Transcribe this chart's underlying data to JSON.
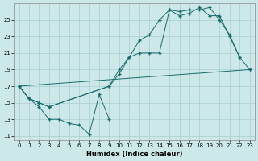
{
  "xlabel": "Humidex (Indice chaleur)",
  "bg_color": "#cce8e8",
  "line_color": "#1a6b6b",
  "grid_color": "#aacece",
  "xlim": [
    -0.5,
    23.5
  ],
  "ylim": [
    10.5,
    27.0
  ],
  "xticks": [
    0,
    1,
    2,
    3,
    4,
    5,
    6,
    7,
    8,
    9,
    10,
    11,
    12,
    13,
    14,
    15,
    16,
    17,
    18,
    19,
    20,
    21,
    22,
    23
  ],
  "yticks": [
    11,
    13,
    15,
    17,
    19,
    21,
    23,
    25
  ],
  "series": [
    {
      "x": [
        0,
        1,
        2,
        3,
        4,
        5,
        6,
        7,
        8,
        9
      ],
      "y": [
        17.0,
        15.5,
        14.5,
        13.0,
        13.0,
        12.5,
        12.3,
        11.2,
        16.0,
        13.0
      ]
    },
    {
      "x": [
        0,
        1,
        2,
        3,
        9,
        10,
        11,
        12,
        13,
        14,
        15,
        16,
        17,
        18,
        19,
        20,
        21,
        22
      ],
      "y": [
        17.0,
        15.5,
        15.0,
        14.5,
        17.0,
        19.0,
        20.5,
        22.5,
        23.2,
        25.0,
        26.2,
        26.0,
        26.2,
        26.2,
        26.5,
        25.0,
        23.2,
        20.5
      ]
    },
    {
      "x": [
        0,
        1,
        2,
        3,
        9,
        10,
        11,
        12,
        13,
        14,
        15,
        16,
        17,
        18,
        19,
        20,
        21,
        22,
        23
      ],
      "y": [
        17.0,
        15.5,
        15.0,
        14.5,
        17.0,
        18.5,
        20.5,
        21.0,
        21.0,
        21.0,
        26.2,
        25.5,
        25.8,
        26.5,
        25.5,
        25.5,
        23.0,
        20.5,
        19.0
      ]
    },
    {
      "x": [
        0,
        23
      ],
      "y": [
        17.0,
        19.0
      ]
    }
  ]
}
